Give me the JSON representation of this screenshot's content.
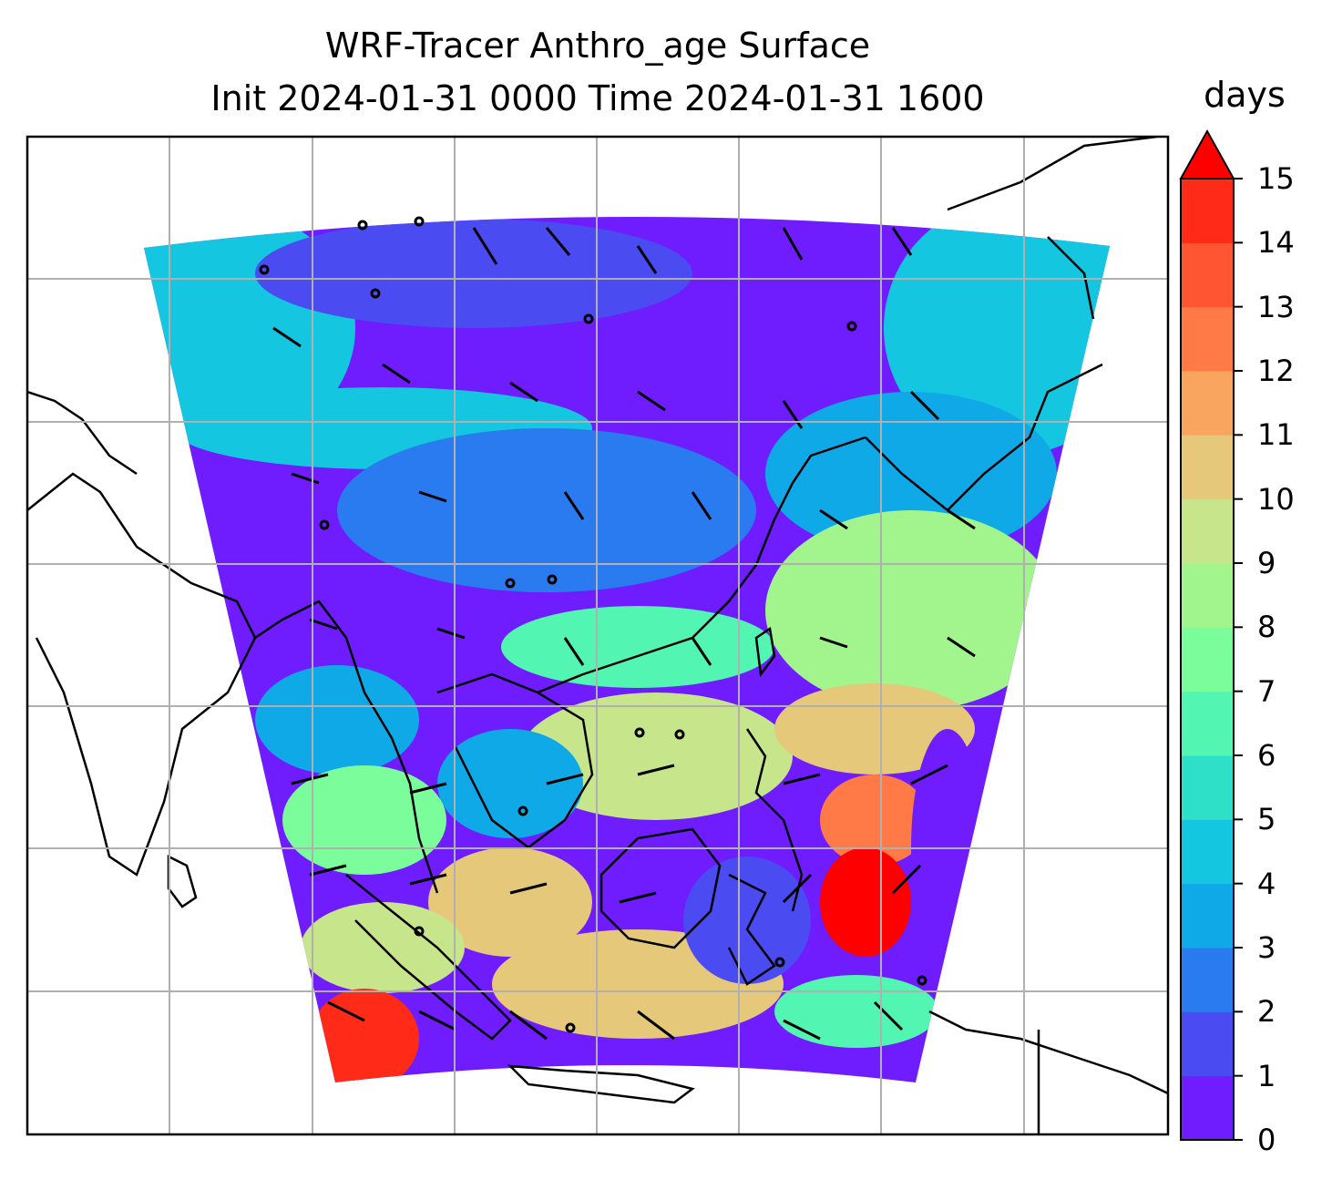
{
  "title": {
    "line1": "WRF-Tracer Anthro_age Surface",
    "line2": "Init 2024-01-31 0000 Time 2024-01-31 1600"
  },
  "colorbar": {
    "unit": "days",
    "min": 0,
    "max": 15,
    "extend": "max",
    "ticks": [
      "0",
      "1",
      "2",
      "3",
      "4",
      "5",
      "6",
      "7",
      "8",
      "9",
      "10",
      "11",
      "12",
      "13",
      "14",
      "15"
    ],
    "colors": [
      "#6f1cff",
      "#4a4cf2",
      "#2a7af0",
      "#0fa9e8",
      "#15c6e0",
      "#2fe0c8",
      "#52f5b2",
      "#7cfd9b",
      "#a2f48c",
      "#c7e68b",
      "#e6c87a",
      "#f9a45f",
      "#ff7a46",
      "#ff5532",
      "#ff2a17",
      "#ff0000"
    ]
  },
  "map": {
    "gridlines": true,
    "field": "anthropogenic tracer age",
    "overlay": "wind barbs",
    "coastlines": true
  }
}
